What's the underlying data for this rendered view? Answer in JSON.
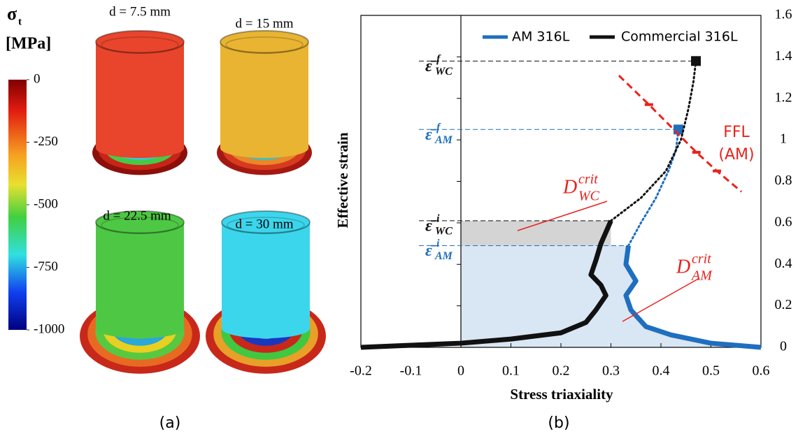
{
  "panel_a": {
    "colorbar": {
      "symbol": "σ",
      "subscript": "t",
      "unit": "[MPa]",
      "lim": [
        -1000,
        0
      ],
      "ticks": [
        0,
        -250,
        -500,
        -750,
        -1000
      ]
    },
    "labels": [
      "d = 7.5 mm",
      "d = 15 mm",
      "d = 22.5 mm",
      "d = 30 mm"
    ],
    "caption": "(a)"
  },
  "chart_data": {
    "type": "line",
    "x_label": "Stress triaxiality",
    "y_label": "Effective strain",
    "xlim": [
      -0.2,
      0.6
    ],
    "xticks": [
      -0.2,
      -0.1,
      0,
      0.1,
      0.2,
      0.3,
      0.4,
      0.5,
      0.6
    ],
    "ylim": [
      0,
      1.6
    ],
    "yticks": [
      0,
      0.2,
      0.4,
      0.6,
      0.8,
      1,
      1.2,
      1.4,
      1.6
    ],
    "legend": "top",
    "series": [
      {
        "name": "AM 316L",
        "color": "#1f6fbf",
        "x": [
          0.6,
          0.5,
          0.42,
          0.37,
          0.34,
          0.33,
          0.35,
          0.33,
          0.335
        ],
        "values": [
          0,
          0.02,
          0.06,
          0.1,
          0.18,
          0.25,
          0.32,
          0.4,
          0.49
        ],
        "path_x": [
          0.335,
          0.36,
          0.39,
          0.415,
          0.43,
          0.435
        ],
        "path_values": [
          0.49,
          0.6,
          0.72,
          0.85,
          0.95,
          1.05
        ],
        "marker": {
          "x": 0.435,
          "value": 1.05
        }
      },
      {
        "name": "Commercial 316L",
        "color": "#111111",
        "x": [
          -0.2,
          -0.1,
          0,
          0.1,
          0.2,
          0.25,
          0.27,
          0.29,
          0.28,
          0.26,
          0.27,
          0.28,
          0.3
        ],
        "values": [
          0,
          0.01,
          0.02,
          0.04,
          0.07,
          0.12,
          0.18,
          0.25,
          0.3,
          0.35,
          0.42,
          0.5,
          0.61
        ],
        "path_x": [
          0.3,
          0.36,
          0.41,
          0.44,
          0.455,
          0.465,
          0.47
        ],
        "path_values": [
          0.61,
          0.72,
          0.85,
          1.0,
          1.15,
          1.28,
          1.38
        ],
        "marker": {
          "x": 0.47,
          "value": 1.38
        }
      }
    ],
    "ffl": {
      "label": [
        "FFL",
        "(AM)"
      ],
      "color": "#e8231e",
      "x": [
        0.316,
        0.376,
        0.471,
        0.512,
        0.561
      ],
      "values": [
        1.31,
        1.17,
        0.94,
        0.85,
        0.75
      ]
    },
    "strain_labels": [
      {
        "symbol": "ε̄",
        "sup": "f",
        "sub": "WC",
        "color": "#111111"
      },
      {
        "symbol": "ε̄",
        "sup": "f",
        "sub": "AM",
        "color": "#1f6fbf"
      },
      {
        "symbol": "ε̄",
        "sup": "i",
        "sub": "WC",
        "color": "#111111"
      },
      {
        "symbol": "ε̄",
        "sup": "i",
        "sub": "AM",
        "color": "#1f6fbf"
      }
    ],
    "damage_labels": [
      {
        "symbol": "D",
        "sup": "crit",
        "sub": "WC"
      },
      {
        "symbol": "D",
        "sup": "crit",
        "sub": "AM"
      }
    ],
    "caption": "(b)"
  }
}
